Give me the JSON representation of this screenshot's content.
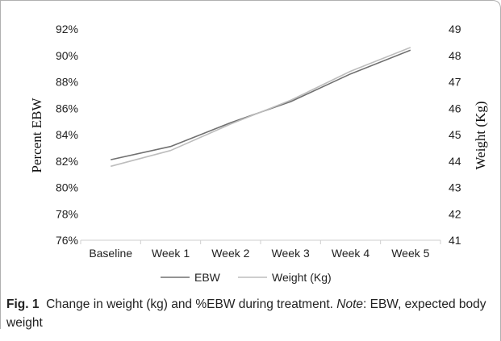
{
  "chart_data": {
    "type": "line",
    "categories": [
      "Baseline",
      "Week 1",
      "Week 2",
      "Week 3",
      "Week 4",
      "Week 5"
    ],
    "y_left": {
      "label": "Percent EBW",
      "ylim": [
        76,
        92
      ],
      "ticks": [
        "76%",
        "78%",
        "80%",
        "82%",
        "84%",
        "86%",
        "88%",
        "90%",
        "92%"
      ]
    },
    "y_right": {
      "label": "Weight (Kg)",
      "ylim": [
        41,
        49
      ],
      "ticks": [
        "41",
        "42",
        "43",
        "44",
        "45",
        "46",
        "47",
        "48",
        "49"
      ]
    },
    "series": [
      {
        "name": "EBW",
        "axis": "left",
        "color": "#707070",
        "values": [
          82.1,
          83.1,
          84.9,
          86.5,
          88.6,
          90.4
        ]
      },
      {
        "name": "Weight (Kg)",
        "axis": "right",
        "color": "#bdbdbd",
        "values": [
          43.8,
          44.4,
          45.4,
          46.3,
          47.4,
          48.3
        ]
      }
    ],
    "legend_position": "bottom",
    "grid": false
  },
  "caption": {
    "label": "Fig. 1",
    "text_part1": "Change in weight (kg) and %EBW during treatment.",
    "note_label": "Note",
    "text_part2": ": EBW, expected body weight"
  }
}
